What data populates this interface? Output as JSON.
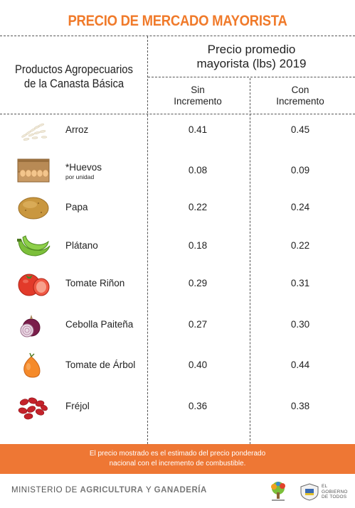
{
  "title": "PRECIO DE MERCADO MAYORISTA",
  "header": {
    "left_line1": "Productos Agropecuarios",
    "left_line2": "de la Canasta Básica",
    "right_line1": "Precio promedio",
    "right_line2": "mayorista (lbs) 2019",
    "col1_line1": "Sin",
    "col1_line2": "Incremento",
    "col2_line1": "Con",
    "col2_line2": "Incremento"
  },
  "rows": [
    {
      "icon": "rice-icon",
      "name": "Arroz",
      "sub": "",
      "sin": "0.41",
      "con": "0.45"
    },
    {
      "icon": "egg-carton-icon",
      "name": "*Huevos",
      "sub": "por unidad",
      "sin": "0.08",
      "con": "0.09"
    },
    {
      "icon": "potato-icon",
      "name": "Papa",
      "sub": "",
      "sin": "0.22",
      "con": "0.24"
    },
    {
      "icon": "plantain-icon",
      "name": "Plátano",
      "sub": "",
      "sin": "0.18",
      "con": "0.22"
    },
    {
      "icon": "tomato-icon",
      "name": "Tomate Riñon",
      "sub": "",
      "sin": "0.29",
      "con": "0.31"
    },
    {
      "icon": "onion-icon",
      "name": "Cebolla Paiteña",
      "sub": "",
      "sin": "0.27",
      "con": "0.30"
    },
    {
      "icon": "tree-tomato-icon",
      "name": "Tomate de Árbol",
      "sub": "",
      "sin": "0.40",
      "con": "0.44"
    },
    {
      "icon": "beans-icon",
      "name": "Fréjol",
      "sub": "",
      "sin": "0.36",
      "con": "0.38"
    }
  ],
  "banner": {
    "line1": "El precio mostrado es el estimado del precio ponderado",
    "line2": "nacional con el incremento de combustible."
  },
  "footer": {
    "ministry_prefix": "MINISTERIO DE",
    "ministry_bold": "AGRICULTURA",
    "ministry_mid": "Y",
    "ministry_bold2": "GANADERÍA",
    "logo_text_1": "EL",
    "logo_text_2": "GOBIERNO",
    "logo_text_3": "DE TODOS"
  },
  "colors": {
    "accent": "#f07a2a",
    "banner": "#ee7734"
  }
}
